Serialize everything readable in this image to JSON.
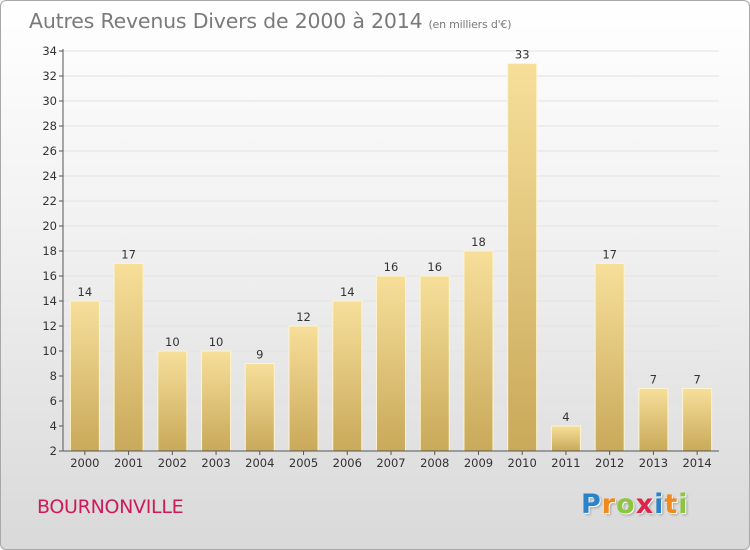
{
  "header": {
    "title": "Autres Revenus Divers de 2000 à 2014",
    "unit": "(en milliers d'€)"
  },
  "footer": {
    "town": "BOURNONVILLE",
    "logo_letters": [
      {
        "ch": "P",
        "color": "#2a82c8"
      },
      {
        "ch": "r",
        "color": "#f08a1c"
      },
      {
        "ch": "o",
        "color": "#8cc63f"
      },
      {
        "ch": "x",
        "color": "#e0234a"
      },
      {
        "ch": "i",
        "color": "#2a82c8"
      },
      {
        "ch": "t",
        "color": "#f08a1c"
      },
      {
        "ch": "i",
        "color": "#8cc63f"
      }
    ]
  },
  "chart_data": {
    "type": "bar",
    "categories": [
      "2000",
      "2001",
      "2002",
      "2003",
      "2004",
      "2005",
      "2006",
      "2007",
      "2008",
      "2009",
      "2010",
      "2011",
      "2012",
      "2013",
      "2014"
    ],
    "values": [
      14,
      17,
      10,
      10,
      9,
      12,
      14,
      16,
      16,
      18,
      33,
      4,
      17,
      7,
      7
    ],
    "ylim": [
      2,
      34
    ],
    "yticks": [
      2,
      4,
      6,
      8,
      10,
      12,
      14,
      16,
      18,
      20,
      22,
      24,
      26,
      28,
      30,
      32,
      34
    ],
    "grid": true,
    "bar_color_light": "#f7df9a",
    "bar_color_dark": "#c9a95a"
  }
}
